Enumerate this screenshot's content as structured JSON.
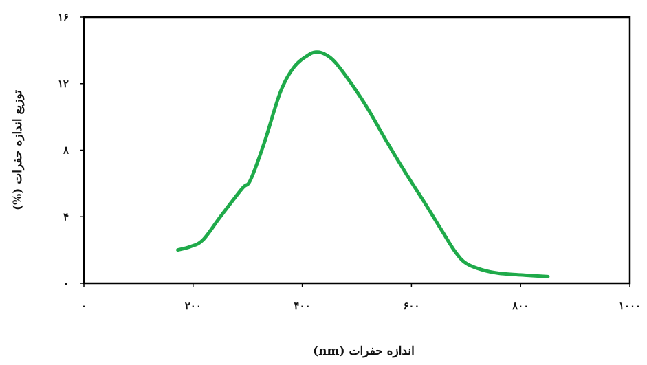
{
  "chart_data": {
    "type": "line",
    "title": "",
    "xlabel": "اندازه حفرات (nm)",
    "ylabel": "توزیع اندازه حفرات (%)",
    "xlim": [
      0,
      1000
    ],
    "ylim": [
      0,
      16
    ],
    "x_ticks": [
      0,
      200,
      400,
      600,
      800,
      1000
    ],
    "y_ticks": [
      0,
      4,
      8,
      12,
      16
    ],
    "x_tick_labels": [
      "۰",
      "۲۰۰",
      "۴۰۰",
      "۶۰۰",
      "۸۰۰",
      "۱۰۰۰"
    ],
    "y_tick_labels": [
      "۰",
      "۴",
      "۸",
      "۱۲",
      "۱۶"
    ],
    "grid": false,
    "legend": "none",
    "series": [
      {
        "color": "#1faa4a",
        "x": [
          172,
          195,
          218,
          250,
          290,
          305,
          330,
          360,
          385,
          410,
          425,
          440,
          460,
          490,
          520,
          555,
          590,
          625,
          655,
          680,
          700,
          730,
          760,
          800,
          850
        ],
        "y": [
          2.0,
          2.2,
          2.6,
          4.0,
          5.7,
          6.2,
          8.4,
          11.5,
          13.0,
          13.7,
          13.9,
          13.8,
          13.3,
          12.0,
          10.5,
          8.5,
          6.6,
          4.8,
          3.2,
          1.9,
          1.2,
          0.8,
          0.6,
          0.5,
          0.4
        ]
      }
    ]
  }
}
